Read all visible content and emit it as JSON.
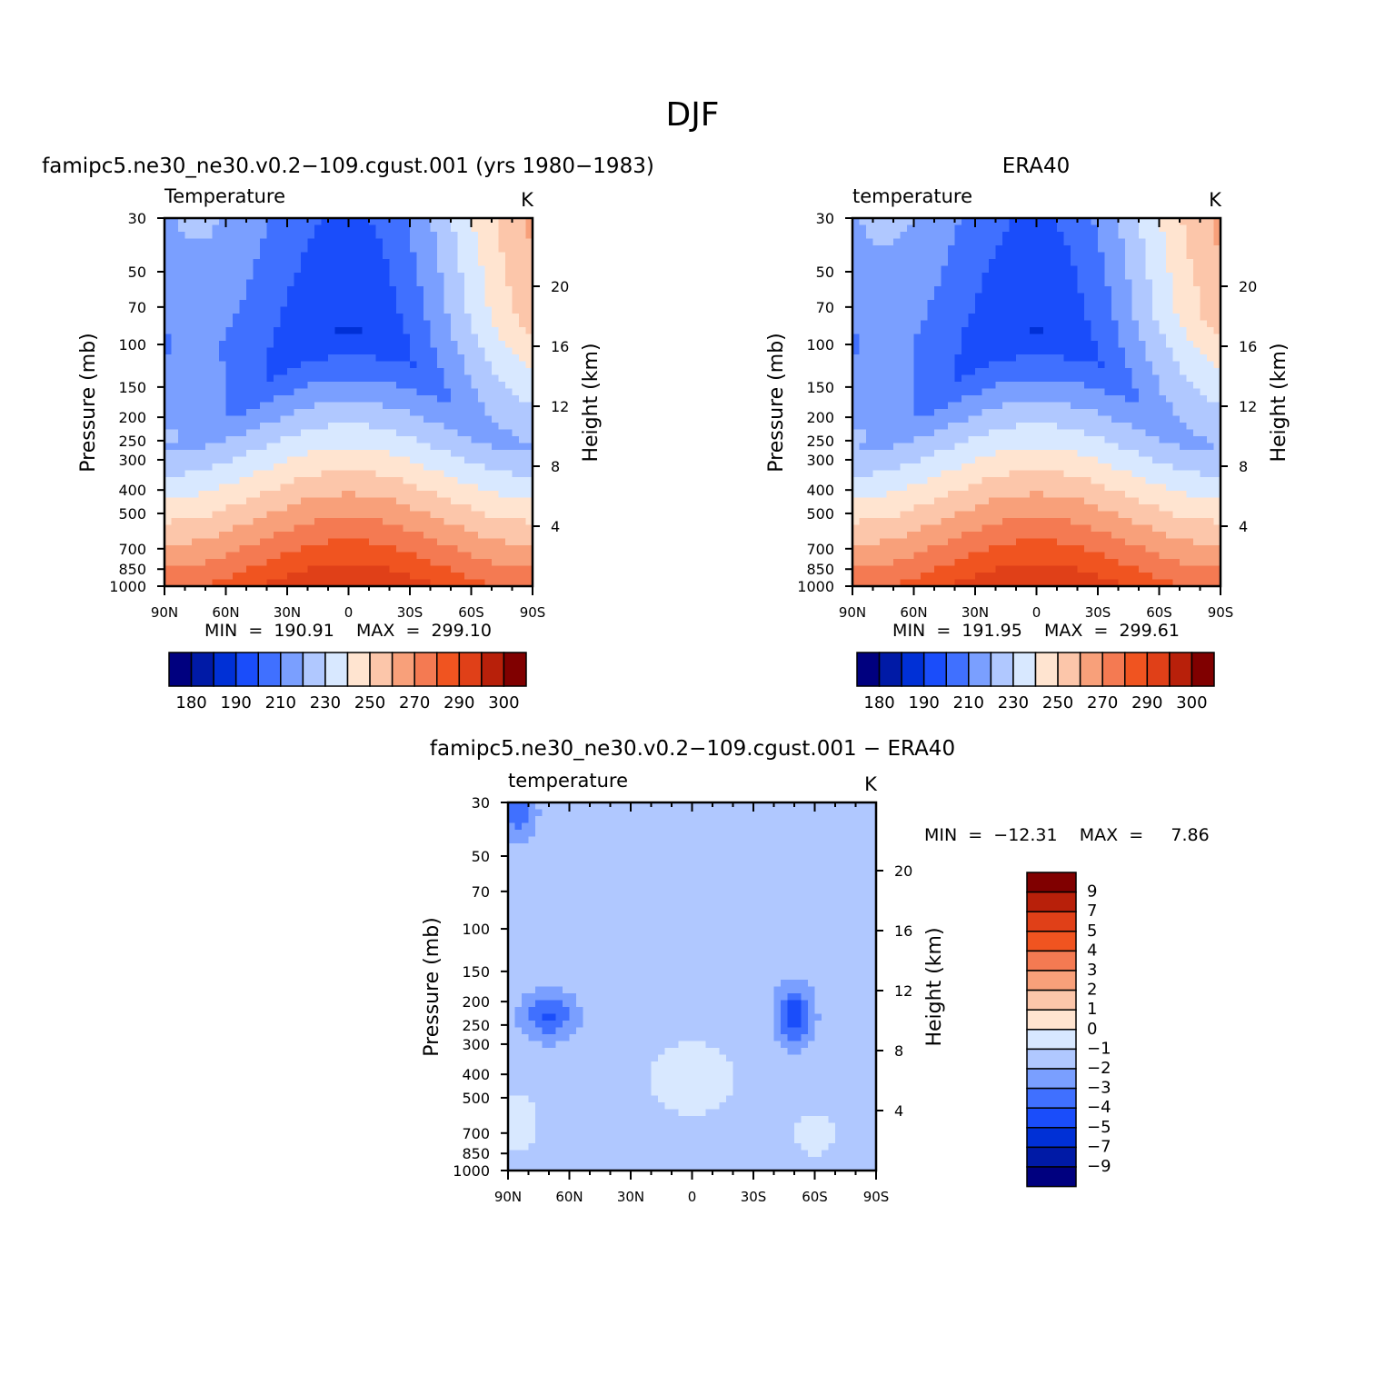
{
  "page_title": "DJF",
  "palette": [
    "#00007f",
    "#001aa6",
    "#0030d6",
    "#1a4dfa",
    "#4070ff",
    "#7a9fff",
    "#b0c8ff",
    "#d8e8ff",
    "#ffe4d0",
    "#fcc6aa",
    "#f8a07a",
    "#f47a52",
    "#f05420",
    "#e04018",
    "#b8200a",
    "#800000"
  ],
  "chart_data": [
    {
      "type": "heatmap",
      "panel_title": "famipc5.ne30_ne30.v0.2−109.cgust.001  (yrs  1980−1983)",
      "var_label": "Temperature",
      "units": "K",
      "ylabel": "Pressure  (mb)",
      "y2label": "Height  (km)",
      "xticks": [
        "90N",
        "60N",
        "30N",
        "0",
        "30S",
        "60S",
        "90S"
      ],
      "yticks": [
        "30",
        "50",
        "70",
        "100",
        "150",
        "200",
        "250",
        "300",
        "400",
        "500",
        "700",
        "850",
        "1000"
      ],
      "y2ticks": [
        "20",
        "16",
        "12",
        "8",
        "4"
      ],
      "stats": "MIN  =  190.91    MAX  =  299.10",
      "colorbar_labels": [
        "180",
        "190",
        "210",
        "230",
        "250",
        "270",
        "290",
        "300"
      ]
    },
    {
      "type": "heatmap",
      "panel_title": "ERA40",
      "var_label": "temperature",
      "units": "K",
      "ylabel": "Pressure  (mb)",
      "y2label": "Height  (km)",
      "xticks": [
        "90N",
        "60N",
        "30N",
        "0",
        "30S",
        "60S",
        "90S"
      ],
      "yticks": [
        "30",
        "50",
        "70",
        "100",
        "150",
        "200",
        "250",
        "300",
        "400",
        "500",
        "700",
        "850",
        "1000"
      ],
      "y2ticks": [
        "20",
        "16",
        "12",
        "8",
        "4"
      ],
      "stats": "MIN  =  191.95    MAX  =  299.61",
      "colorbar_labels": [
        "180",
        "190",
        "210",
        "230",
        "250",
        "270",
        "290",
        "300"
      ]
    },
    {
      "type": "heatmap",
      "panel_title": "famipc5.ne30_ne30.v0.2−109.cgust.001  −  ERA40",
      "var_label": "temperature",
      "units": "K",
      "ylabel": "Pressure  (mb)",
      "y2label": "Height  (km)",
      "xticks": [
        "90N",
        "60N",
        "30N",
        "0",
        "30S",
        "60S",
        "90S"
      ],
      "yticks": [
        "30",
        "50",
        "70",
        "100",
        "150",
        "200",
        "250",
        "300",
        "400",
        "500",
        "700",
        "850",
        "1000"
      ],
      "y2ticks": [
        "20",
        "16",
        "12",
        "8",
        "4"
      ],
      "stats": "MIN  =  −12.31    MAX  =     7.86",
      "colorbar_labels": [
        "9",
        "7",
        "5",
        "4",
        "3",
        "2",
        "1",
        "0",
        "−1",
        "−2",
        "−3",
        "−4",
        "−5",
        "−7",
        "−9"
      ]
    }
  ]
}
